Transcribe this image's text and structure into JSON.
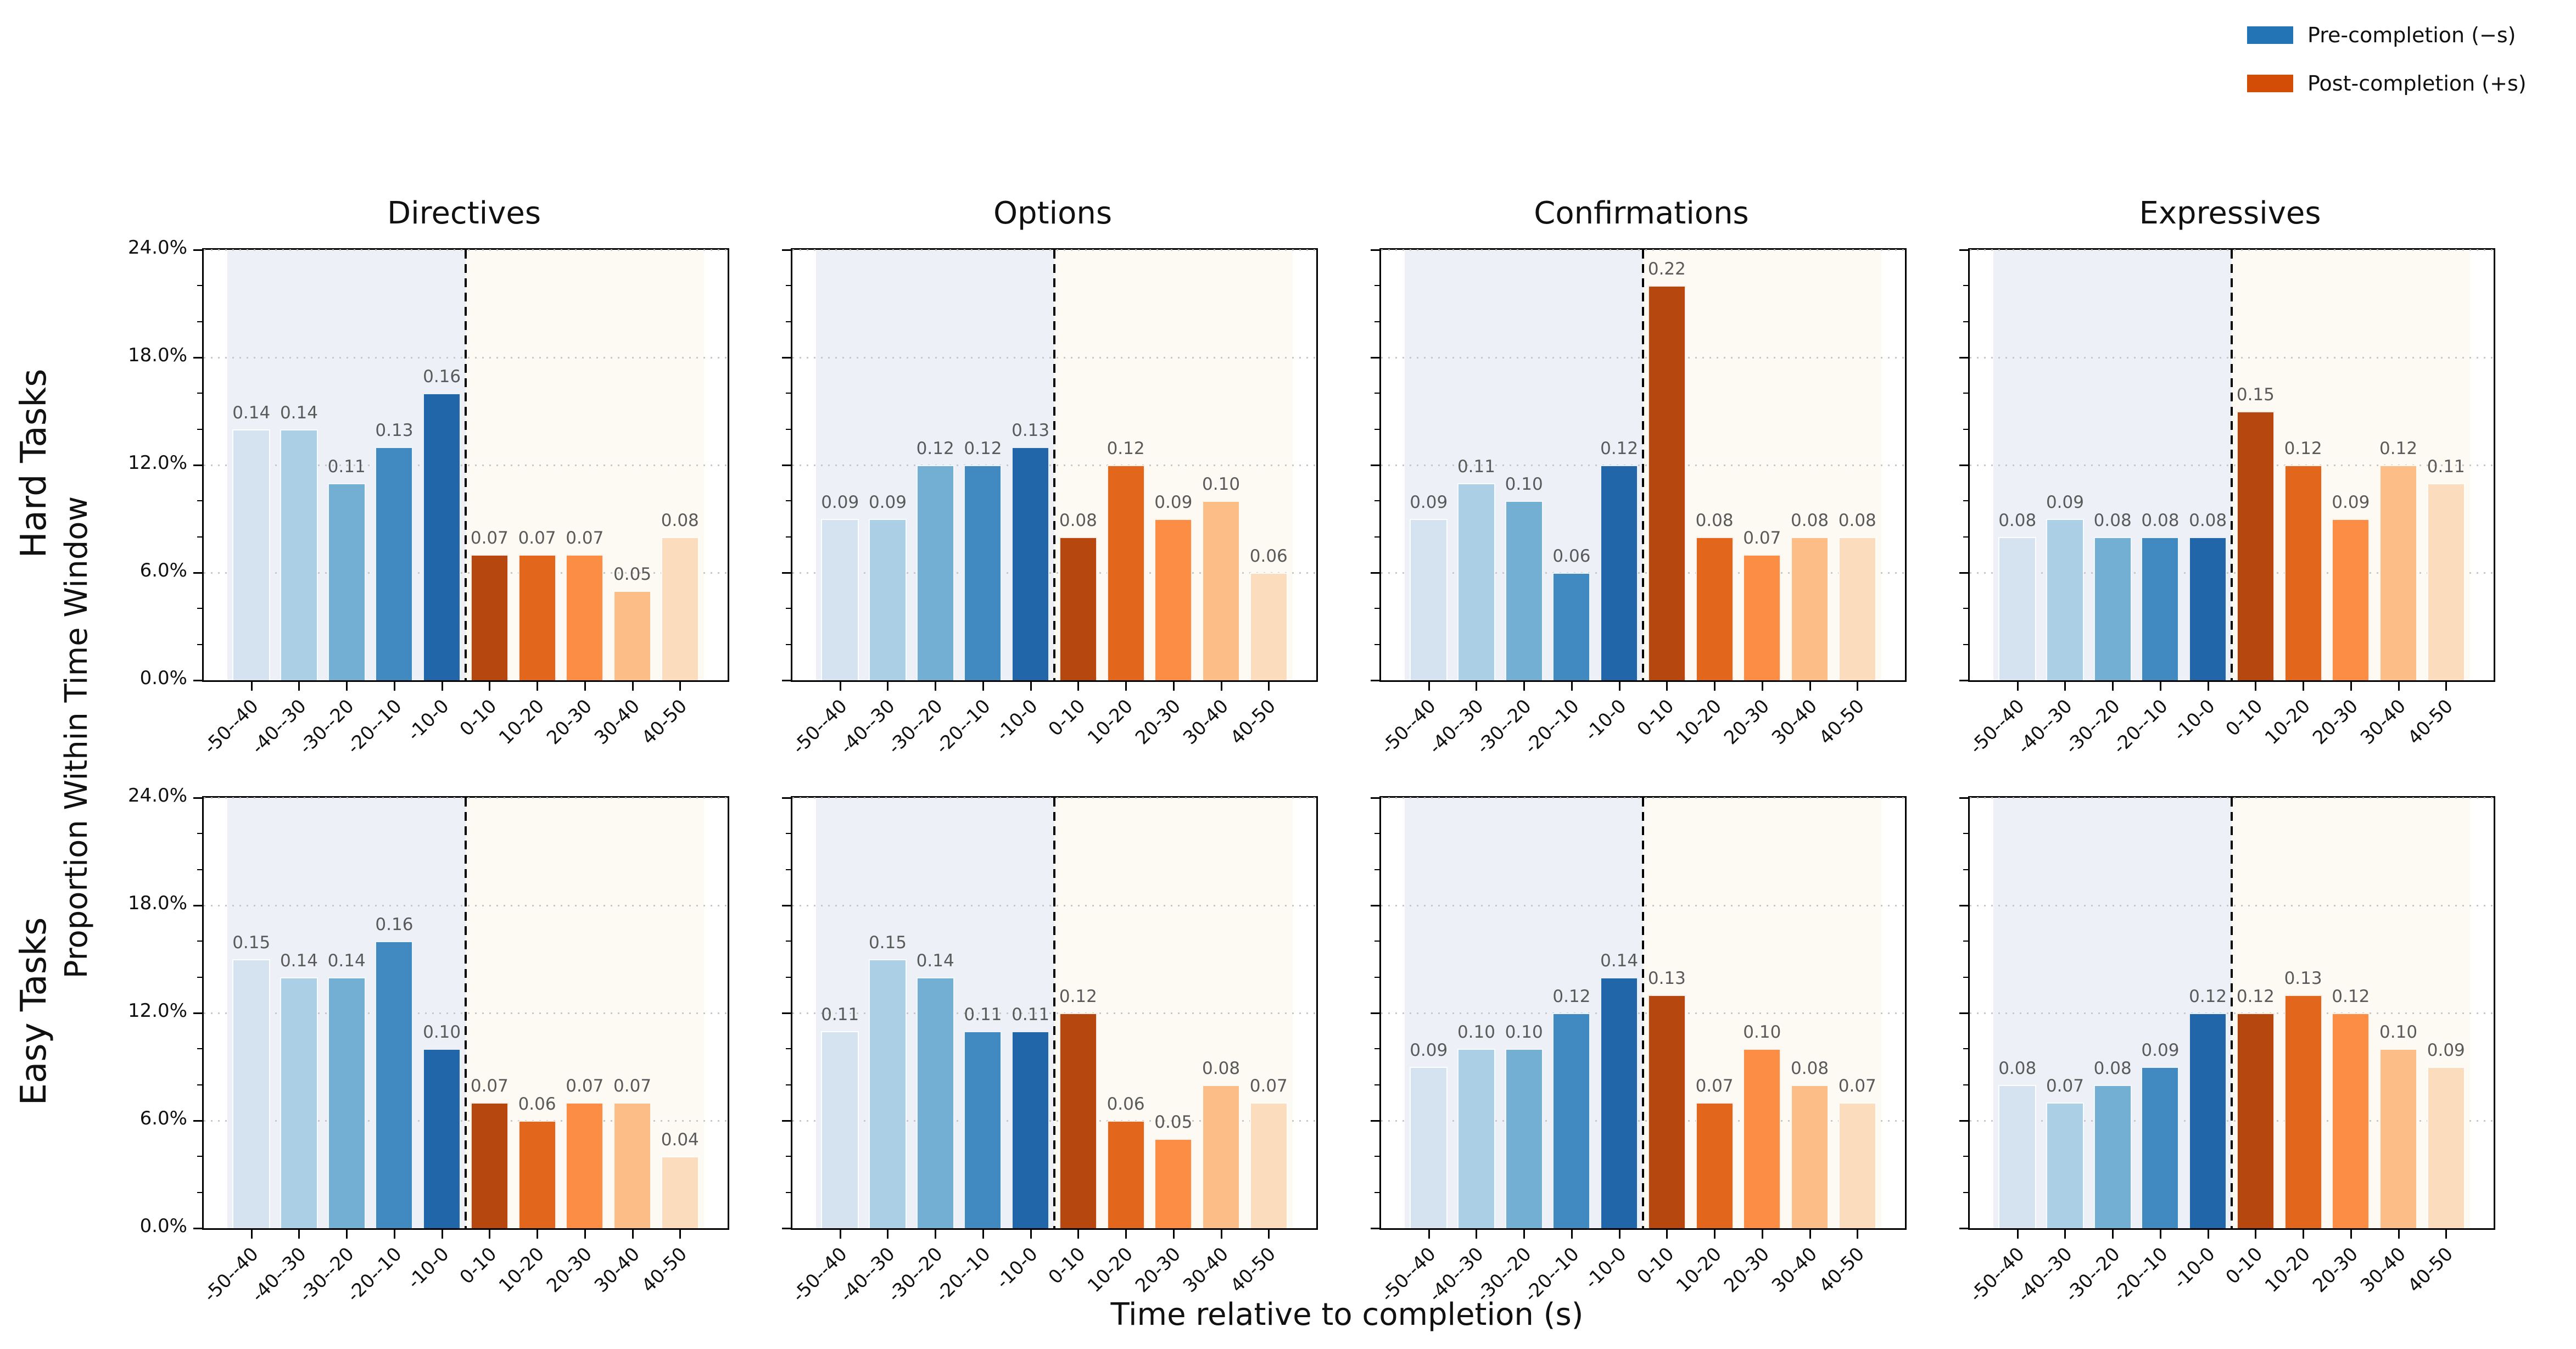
{
  "figure": {
    "xlabel": "Time relative to completion (s)",
    "ylabel": "Proportion Within Time Window",
    "rows": [
      "Hard Tasks",
      "Easy Tasks"
    ],
    "cols": [
      "Directives",
      "Options",
      "Confirmations",
      "Expressives"
    ]
  },
  "legend": [
    {
      "label": "Pre-completion (−s)",
      "color": "#2274b5"
    },
    {
      "label": "Post-completion (+s)",
      "color": "#d44d07"
    }
  ],
  "chart_data": {
    "type": "bar",
    "categories": [
      "-50--40",
      "-40--30",
      "-30--20",
      "-20--10",
      "-10-0",
      "0-10",
      "10-20",
      "20-30",
      "30-40",
      "40-50"
    ],
    "y_tick_labels": [
      "0.0%",
      "6.0%",
      "12.0%",
      "18.0%",
      "24.0%"
    ],
    "ylim": [
      0,
      0.24
    ],
    "grid": true,
    "bar_colors": [
      "#d5e3f0",
      "#abcfe5",
      "#73aed3",
      "#4089c1",
      "#2166a9",
      "#b6470f",
      "#e2661c",
      "#fb8d44",
      "#fcbd87",
      "#fbdcbd"
    ],
    "pre_background": "#edf1f7",
    "post_background": "#fdfaf4",
    "divider_at_category_boundary": "0",
    "subplots": [
      {
        "row": "Hard Tasks",
        "col": "Directives",
        "values": [
          0.14,
          0.14,
          0.11,
          0.13,
          0.16,
          0.07,
          0.07,
          0.07,
          0.05,
          0.08
        ]
      },
      {
        "row": "Hard Tasks",
        "col": "Options",
        "values": [
          0.09,
          0.09,
          0.12,
          0.12,
          0.13,
          0.08,
          0.12,
          0.09,
          0.1,
          0.06
        ]
      },
      {
        "row": "Hard Tasks",
        "col": "Confirmations",
        "values": [
          0.09,
          0.11,
          0.1,
          0.06,
          0.12,
          0.22,
          0.08,
          0.07,
          0.08,
          0.08
        ]
      },
      {
        "row": "Hard Tasks",
        "col": "Expressives",
        "values": [
          0.08,
          0.09,
          0.08,
          0.08,
          0.08,
          0.15,
          0.12,
          0.09,
          0.12,
          0.11
        ]
      },
      {
        "row": "Easy Tasks",
        "col": "Directives",
        "values": [
          0.15,
          0.14,
          0.14,
          0.16,
          0.1,
          0.07,
          0.06,
          0.07,
          0.07,
          0.04
        ]
      },
      {
        "row": "Easy Tasks",
        "col": "Options",
        "values": [
          0.11,
          0.15,
          0.14,
          0.11,
          0.11,
          0.12,
          0.06,
          0.05,
          0.08,
          0.07
        ]
      },
      {
        "row": "Easy Tasks",
        "col": "Confirmations",
        "values": [
          0.09,
          0.1,
          0.1,
          0.12,
          0.14,
          0.13,
          0.07,
          0.1,
          0.08,
          0.07
        ]
      },
      {
        "row": "Easy Tasks",
        "col": "Expressives",
        "values": [
          0.08,
          0.07,
          0.08,
          0.09,
          0.12,
          0.12,
          0.13,
          0.12,
          0.1,
          0.09
        ]
      }
    ]
  }
}
